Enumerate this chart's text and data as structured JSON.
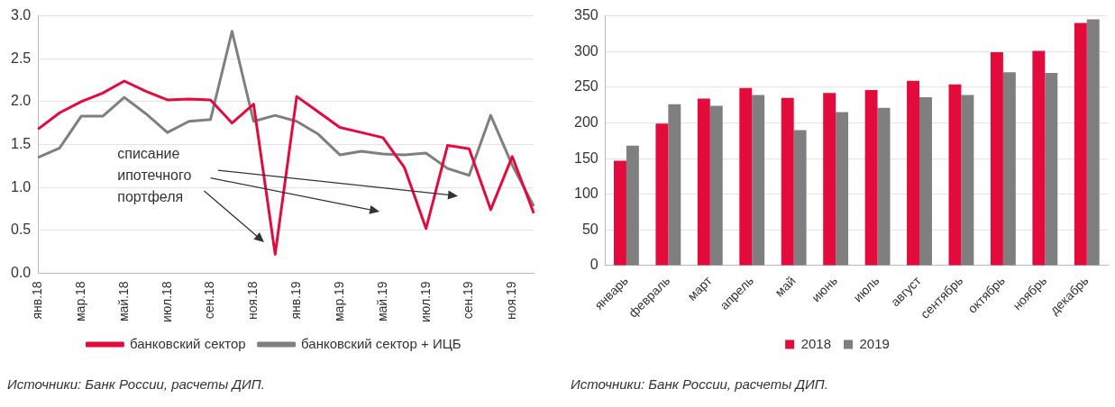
{
  "chart_data": [
    {
      "type": "line",
      "categories": [
        "янв.18",
        null,
        "мар.18",
        null,
        "май.18",
        null,
        "июл.18",
        null,
        "сен.18",
        null,
        "ноя.18",
        null,
        "янв.19",
        null,
        "мар.19",
        null,
        "май.19",
        null,
        "июл.19",
        null,
        "сен.19",
        null,
        "ноя.19",
        null
      ],
      "series": [
        {
          "name": "банковский сектор",
          "color": "#e30b3c",
          "values": [
            1.68,
            1.87,
            2.0,
            2.1,
            2.24,
            2.12,
            2.02,
            2.03,
            2.02,
            1.75,
            1.97,
            0.22,
            2.06,
            1.88,
            1.7,
            1.64,
            1.58,
            1.23,
            0.52,
            1.49,
            1.45,
            0.74,
            1.36,
            0.7
          ]
        },
        {
          "name": "банковский сектор + ИЦБ",
          "color": "#7f7f7f",
          "values": [
            1.35,
            1.46,
            1.83,
            1.83,
            2.05,
            1.86,
            1.64,
            1.77,
            1.79,
            2.82,
            1.77,
            1.84,
            1.77,
            1.62,
            1.38,
            1.42,
            1.39,
            1.38,
            1.4,
            1.22,
            1.14,
            1.84,
            1.26,
            0.78
          ]
        }
      ],
      "ylim": [
        0,
        3
      ],
      "yticks": [
        {
          "value": 0,
          "label": "0.0"
        },
        0.5,
        {
          "value": 1,
          "label": "1.0"
        },
        1.5,
        {
          "value": 2,
          "label": "2.0"
        },
        2.5,
        {
          "value": 3,
          "label": "3.0"
        }
      ],
      "grid": "y",
      "legend": "bottom",
      "marker": "none",
      "line_style": "solid",
      "annotations": [
        "списание ипотечного портфеля",
        "Источники: Банк России, расчеты ДИП."
      ]
    },
    {
      "type": "bar",
      "categories": [
        "январь",
        "февраль",
        "март",
        "апрель",
        "май",
        "июнь",
        "июль",
        "август",
        "сентябрь",
        "октябрь",
        "ноябрь",
        "декабрь"
      ],
      "series": [
        {
          "name": "2018",
          "color": "#e30b3c",
          "values": [
            147,
            199,
            234,
            249,
            235,
            242,
            246,
            259,
            254,
            299,
            301,
            340
          ]
        },
        {
          "name": "2019",
          "color": "#7f7f7f",
          "values": [
            168,
            226,
            224,
            239,
            190,
            215,
            221,
            236,
            239,
            271,
            270,
            345
          ]
        }
      ],
      "ylim": [
        0,
        350
      ],
      "yticks": [
        0,
        50,
        100,
        150,
        200,
        250,
        300,
        350
      ],
      "grid": "y",
      "legend": "bottom",
      "annotations": [
        "Источники: Банк России, расчеты ДИП."
      ]
    }
  ]
}
